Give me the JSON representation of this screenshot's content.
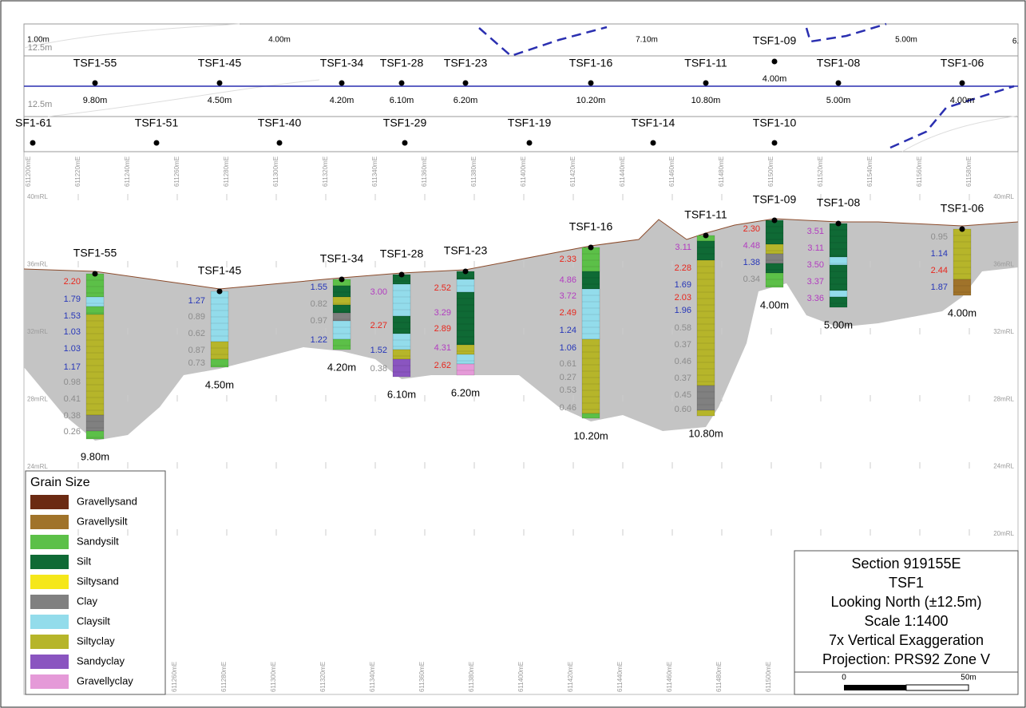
{
  "top_strip": {
    "distances": [
      "1.00m",
      "4.00m",
      "7.10m",
      "5.00m",
      "6."
    ],
    "offsets": [
      "12.5m",
      "12.5m"
    ],
    "row1": [
      {
        "name": "TSF1-55",
        "depth": "9.80m"
      },
      {
        "name": "TSF1-45",
        "depth": "4.50m"
      },
      {
        "name": "TSF1-34",
        "depth": "4.20m"
      },
      {
        "name": "TSF1-28",
        "depth": "6.10m"
      },
      {
        "name": "TSF1-23",
        "depth": "6.20m"
      },
      {
        "name": "TSF1-16",
        "depth": "10.20m"
      },
      {
        "name": "TSF1-11",
        "depth": "10.80m"
      },
      {
        "name": "TSF1-09",
        "depth": "4.00m"
      },
      {
        "name": "TSF1-08",
        "depth": "5.00m"
      },
      {
        "name": "TSF1-06",
        "depth": "4.00m"
      }
    ],
    "row2": [
      "SF1-61",
      "TSF1-51",
      "TSF1-40",
      "TSF1-29",
      "TSF1-19",
      "TSF1-14",
      "TSF1-10"
    ]
  },
  "eastings_top": [
    "611200mE",
    "611220mE",
    "611240mE",
    "611260mE",
    "611280mE",
    "611300mE",
    "611320mE",
    "611340mE",
    "611360mE",
    "611380mE",
    "611400mE",
    "611420mE",
    "611440mE",
    "611460mE",
    "611480mE",
    "611500mE",
    "611520mE",
    "611540mE",
    "611560mE",
    "611580mE"
  ],
  "eastings_bottom": [
    "611260mE",
    "611280mE",
    "611300mE",
    "611320mE",
    "611340mE",
    "611360mE",
    "611380mE",
    "611400mE",
    "611420mE",
    "611440mE",
    "611460mE",
    "611480mE",
    "611500mE"
  ],
  "rl_left": [
    "40mRL",
    "36mRL",
    "32mRL",
    "28mRL",
    "24mRL"
  ],
  "rl_right": [
    "40mRL",
    "36mRL",
    "32mRL",
    "28mRL",
    "24mRL",
    "20mRL"
  ],
  "boreholes": [
    {
      "name": "TSF1-55",
      "depth": "9.80m",
      "values": [
        {
          "text": "2.20",
          "color": "#e8261c"
        },
        {
          "text": "1.79",
          "color": "#2636b8"
        },
        {
          "text": "1.53",
          "color": "#2636b8"
        },
        {
          "text": "1.03",
          "color": "#2636b8"
        },
        {
          "text": "1.03",
          "color": "#2636b8"
        },
        {
          "text": "1.17",
          "color": "#2636b8"
        },
        {
          "text": "0.98",
          "color": "#8c8c8c"
        },
        {
          "text": "0.41",
          "color": "#8c8c8c"
        },
        {
          "text": "0.38",
          "color": "#8c8c8c"
        },
        {
          "text": "0.26",
          "color": "#8c8c8c"
        }
      ]
    },
    {
      "name": "TSF1-45",
      "depth": "4.50m",
      "values": [
        {
          "text": "1.27",
          "color": "#2636b8"
        },
        {
          "text": "0.89",
          "color": "#8c8c8c"
        },
        {
          "text": "0.62",
          "color": "#8c8c8c"
        },
        {
          "text": "0.87",
          "color": "#8c8c8c"
        },
        {
          "text": "0.73",
          "color": "#8c8c8c"
        }
      ]
    },
    {
      "name": "TSF1-34",
      "depth": "4.20m",
      "values": [
        {
          "text": "1.55",
          "color": "#2636b8"
        },
        {
          "text": "0.82",
          "color": "#8c8c8c"
        },
        {
          "text": "0.97",
          "color": "#8c8c8c"
        },
        {
          "text": "1.22",
          "color": "#2636b8"
        }
      ]
    },
    {
      "name": "TSF1-28",
      "depth": "6.10m",
      "values": [
        {
          "text": "3.00",
          "color": "#b23cc0"
        },
        {
          "text": "2.27",
          "color": "#e8261c"
        },
        {
          "text": "1.52",
          "color": "#2636b8"
        },
        {
          "text": "0.38",
          "color": "#8c8c8c"
        }
      ]
    },
    {
      "name": "TSF1-23",
      "depth": "6.20m",
      "values": [
        {
          "text": "2.52",
          "color": "#e8261c"
        },
        {
          "text": "3.29",
          "color": "#b23cc0"
        },
        {
          "text": "2.89",
          "color": "#e8261c"
        },
        {
          "text": "4.31",
          "color": "#b23cc0"
        },
        {
          "text": "2.62",
          "color": "#e8261c"
        }
      ]
    },
    {
      "name": "TSF1-16",
      "depth": "10.20m",
      "values": [
        {
          "text": "2.33",
          "color": "#e8261c"
        },
        {
          "text": "4.86",
          "color": "#b23cc0"
        },
        {
          "text": "3.72",
          "color": "#b23cc0"
        },
        {
          "text": "2.49",
          "color": "#e8261c"
        },
        {
          "text": "1.24",
          "color": "#2636b8"
        },
        {
          "text": "1.06",
          "color": "#2636b8"
        },
        {
          "text": "0.61",
          "color": "#8c8c8c"
        },
        {
          "text": "0.27",
          "color": "#8c8c8c"
        },
        {
          "text": "0.53",
          "color": "#8c8c8c"
        },
        {
          "text": "0.46",
          "color": "#8c8c8c"
        }
      ]
    },
    {
      "name": "TSF1-11",
      "depth": "10.80m",
      "values": [
        {
          "text": "3.11",
          "color": "#b23cc0"
        },
        {
          "text": "2.28",
          "color": "#e8261c"
        },
        {
          "text": "1.69",
          "color": "#2636b8"
        },
        {
          "text": "2.03",
          "color": "#e8261c"
        },
        {
          "text": "1.96",
          "color": "#2636b8"
        },
        {
          "text": "0.58",
          "color": "#8c8c8c"
        },
        {
          "text": "0.37",
          "color": "#8c8c8c"
        },
        {
          "text": "0.46",
          "color": "#8c8c8c"
        },
        {
          "text": "0.37",
          "color": "#8c8c8c"
        },
        {
          "text": "0.45",
          "color": "#8c8c8c"
        },
        {
          "text": "0.60",
          "color": "#8c8c8c"
        }
      ]
    },
    {
      "name": "TSF1-09",
      "depth": "4.00m",
      "values": [
        {
          "text": "2.30",
          "color": "#e8261c"
        },
        {
          "text": "4.48",
          "color": "#b23cc0"
        },
        {
          "text": "1.38",
          "color": "#2636b8"
        },
        {
          "text": "0.34",
          "color": "#8c8c8c"
        }
      ]
    },
    {
      "name": "TSF1-08",
      "depth": "5.00m",
      "values": [
        {
          "text": "3.51",
          "color": "#b23cc0"
        },
        {
          "text": "3.11",
          "color": "#b23cc0"
        },
        {
          "text": "3.50",
          "color": "#b23cc0"
        },
        {
          "text": "3.37",
          "color": "#b23cc0"
        },
        {
          "text": "3.36",
          "color": "#b23cc0"
        }
      ]
    },
    {
      "name": "TSF1-06",
      "depth": "4.00m",
      "values": [
        {
          "text": "0.95",
          "color": "#8c8c8c"
        },
        {
          "text": "1.14",
          "color": "#2636b8"
        },
        {
          "text": "2.44",
          "color": "#e8261c"
        },
        {
          "text": "1.87",
          "color": "#2636b8"
        }
      ]
    }
  ],
  "legend": {
    "title": "Grain Size",
    "items": [
      {
        "name": "Gravellysand",
        "color": "#6b2a12"
      },
      {
        "name": "Gravellysilt",
        "color": "#a0732a"
      },
      {
        "name": "Sandysilt",
        "color": "#5cc048"
      },
      {
        "name": "Silt",
        "color": "#0f6a35"
      },
      {
        "name": "Siltysand",
        "color": "#f5e71a"
      },
      {
        "name": "Clay",
        "color": "#808080"
      },
      {
        "name": "Claysilt",
        "color": "#93dceb"
      },
      {
        "name": "Siltyclay",
        "color": "#b6b52a"
      },
      {
        "name": "Sandyclay",
        "color": "#8a55c0"
      },
      {
        "name": "Gravellyclay",
        "color": "#e59ad8"
      }
    ]
  },
  "title_block": {
    "lines": [
      "Section 919155E",
      "TSF1",
      "Looking North (±12.5m)",
      "Scale 1:1400",
      "7x Vertical Exaggeration",
      "Projection: PRS92 Zone V"
    ]
  },
  "scale_bar": {
    "start": "0",
    "end": "50m"
  }
}
